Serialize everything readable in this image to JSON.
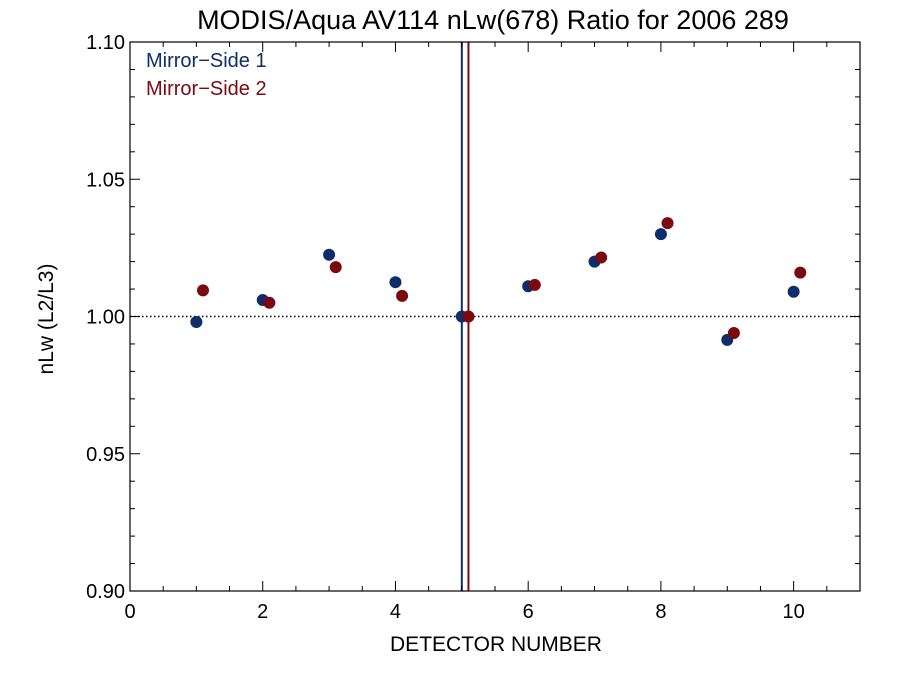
{
  "chart_data": {
    "type": "scatter",
    "title": "MODIS/Aqua AV114 nLw(678) Ratio for 2006 289",
    "xlabel": "DETECTOR NUMBER",
    "ylabel": "nLw (L2/L3)",
    "xlim": [
      0,
      11
    ],
    "ylim": [
      0.9,
      1.1
    ],
    "x_ticks": [
      0,
      2,
      4,
      6,
      8,
      10
    ],
    "x_tick_labels": [
      "0",
      "2",
      "4",
      "6",
      "8",
      "10"
    ],
    "y_ticks": [
      0.9,
      0.95,
      1.0,
      1.05,
      1.1
    ],
    "y_tick_labels": [
      "0.90",
      "0.95",
      "1.00",
      "1.05",
      "1.10"
    ],
    "reference_line_y": 1.0,
    "vertical_lines": [
      {
        "x": 5.0,
        "color": "#0d2d6b"
      },
      {
        "x": 5.1,
        "color": "#7a0a10"
      }
    ],
    "legend_placement": "top-left",
    "series": [
      {
        "name": "Mirror−Side 1",
        "color": "#0d2d6b",
        "x": [
          1,
          2,
          3,
          4,
          5,
          6,
          7,
          8,
          9,
          10
        ],
        "y": [
          0.998,
          1.006,
          1.0225,
          1.0125,
          1.0,
          1.011,
          1.02,
          1.03,
          0.9915,
          1.009
        ]
      },
      {
        "name": "Mirror−Side 2",
        "color": "#7a0a10",
        "x": [
          1.1,
          2.1,
          3.1,
          4.1,
          5.1,
          6.1,
          7.1,
          8.1,
          9.1,
          10.1
        ],
        "y": [
          1.0095,
          1.005,
          1.018,
          1.0075,
          1.0,
          1.0115,
          1.0215,
          1.034,
          0.994,
          1.016
        ]
      }
    ]
  }
}
